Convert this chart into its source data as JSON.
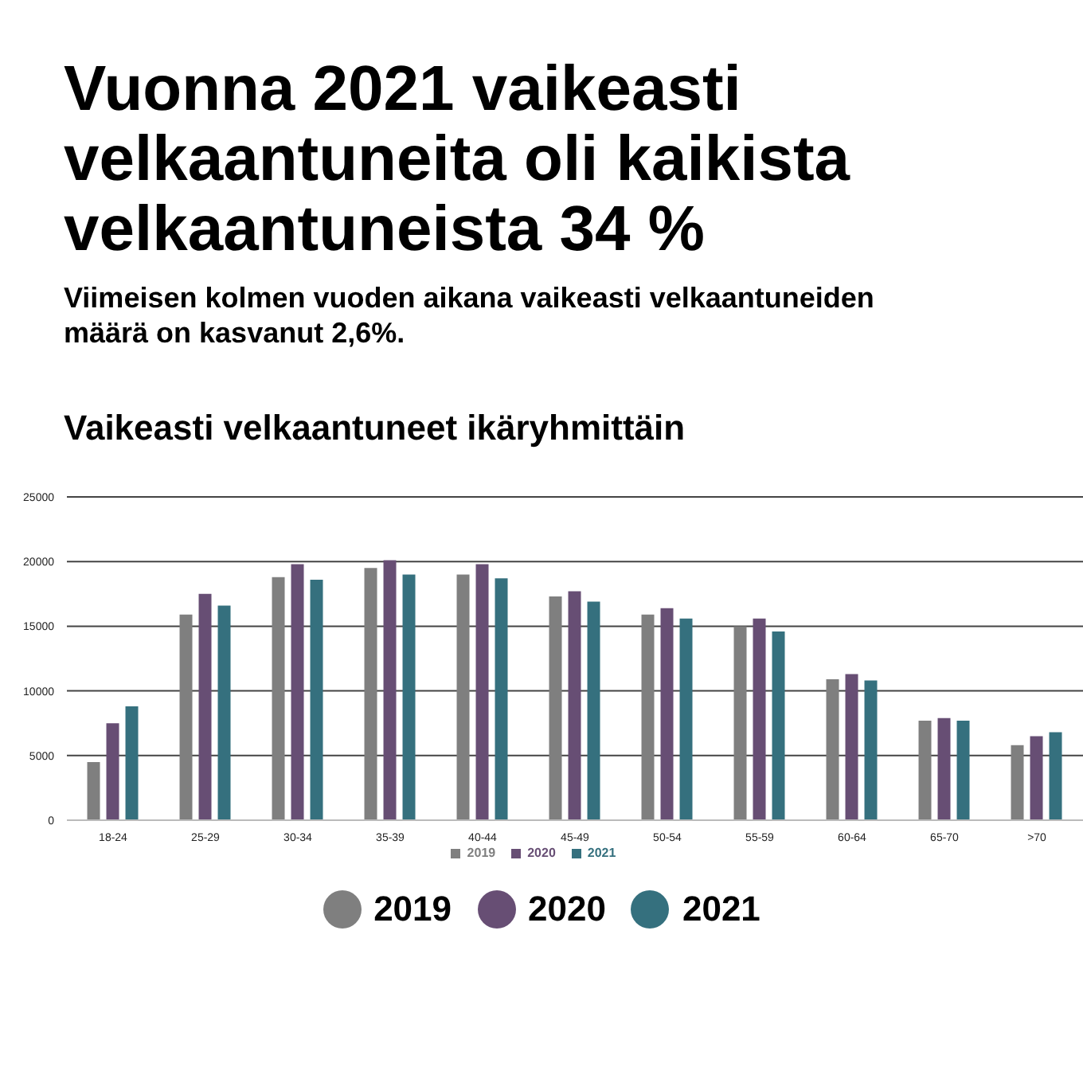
{
  "chart_data": {
    "type": "bar",
    "title": "Vuonna 2021 vaikeasti velkaantuneita oli kaikista velkaantuneista 34 %",
    "subtitle": "Viimeisen kolmen vuoden aikana vaikeasti velkaantuneiden määrä on kasvanut 2,6%.",
    "annotations": [
      "Vaikeasti velkaantuneet ikäryhmittäin"
    ],
    "categories": [
      "18-24",
      "25-29",
      "30-34",
      "35-39",
      "40-44",
      "45-49",
      "50-54",
      "55-59",
      "60-64",
      "65-70",
      ">70"
    ],
    "series": [
      {
        "name": "2019",
        "color": "#7f7f7f",
        "values": [
          4500,
          15900,
          18800,
          19500,
          19000,
          17300,
          15900,
          15000,
          10900,
          7700,
          5800
        ]
      },
      {
        "name": "2020",
        "color": "#674e74",
        "values": [
          7500,
          17500,
          19800,
          20100,
          19800,
          17700,
          16400,
          15600,
          11300,
          7900,
          6500
        ]
      },
      {
        "name": "2021",
        "color": "#35707e",
        "values": [
          8800,
          16600,
          18600,
          19000,
          18700,
          16900,
          15600,
          14600,
          10800,
          7700,
          6800
        ]
      }
    ],
    "ylim": [
      0,
      25000
    ],
    "yticks": [
      0,
      5000,
      10000,
      15000,
      20000,
      25000
    ],
    "grid": "y",
    "legend": "bottom"
  }
}
